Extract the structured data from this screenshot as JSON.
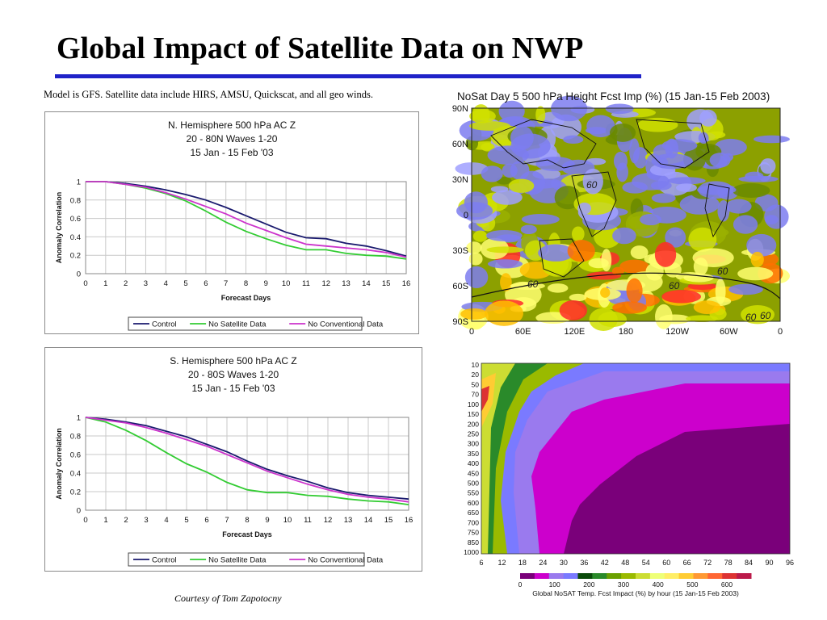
{
  "slide": {
    "title": "Global Impact of Satellite Data on NWP",
    "subtitle": "Model is GFS.  Satellite data include HIRS, AMSU, Quickscat, and all geo winds.",
    "credit": "Courtesy of Tom Zapotocny"
  },
  "chart_data": [
    {
      "type": "line",
      "title": [
        "N. Hemisphere 500 hPa AC Z",
        "20 - 80N Waves 1-20",
        "15 Jan - 15 Feb '03"
      ],
      "xlabel": "Forecast Days",
      "ylabel": "Anomaly Correlation",
      "x": [
        0,
        1,
        2,
        3,
        4,
        5,
        6,
        7,
        8,
        9,
        10,
        11,
        12,
        13,
        14,
        15,
        16
      ],
      "xlim": [
        0,
        16
      ],
      "ylim": [
        0,
        1
      ],
      "yticks": [
        "0",
        "0.2",
        "0.4",
        "0.6",
        "0.8",
        "1"
      ],
      "grid": true,
      "legend_position": "bottom",
      "series": [
        {
          "name": "Control",
          "color": "#1a1a6e",
          "values": [
            1.0,
            1.0,
            0.98,
            0.95,
            0.91,
            0.86,
            0.8,
            0.72,
            0.63,
            0.54,
            0.45,
            0.39,
            0.38,
            0.33,
            0.3,
            0.25,
            0.19
          ]
        },
        {
          "name": "No Satellite Data",
          "color": "#33cc33",
          "values": [
            1.0,
            1.0,
            0.97,
            0.93,
            0.87,
            0.79,
            0.68,
            0.56,
            0.46,
            0.38,
            0.31,
            0.26,
            0.26,
            0.22,
            0.2,
            0.19,
            0.16
          ]
        },
        {
          "name": "No Conventional Data",
          "color": "#cc33cc",
          "values": [
            1.0,
            1.0,
            0.97,
            0.94,
            0.88,
            0.81,
            0.73,
            0.65,
            0.55,
            0.47,
            0.39,
            0.32,
            0.3,
            0.28,
            0.26,
            0.23,
            0.18
          ]
        }
      ]
    },
    {
      "type": "line",
      "title": [
        "S. Hemisphere 500 hPa AC Z",
        "20 - 80S Waves 1-20",
        "15 Jan - 15 Feb '03"
      ],
      "xlabel": "Forecast Days",
      "ylabel": "Anomaly Correlation",
      "x": [
        0,
        1,
        2,
        3,
        4,
        5,
        6,
        7,
        8,
        9,
        10,
        11,
        12,
        13,
        14,
        15,
        16
      ],
      "xlim": [
        0,
        16
      ],
      "ylim": [
        0,
        1
      ],
      "yticks": [
        "0",
        "0.2",
        "0.4",
        "0.6",
        "0.8",
        "1"
      ],
      "grid": true,
      "legend_position": "bottom",
      "series": [
        {
          "name": "Control",
          "color": "#1a1a6e",
          "values": [
            1.0,
            0.98,
            0.95,
            0.91,
            0.85,
            0.79,
            0.71,
            0.63,
            0.53,
            0.44,
            0.37,
            0.31,
            0.24,
            0.19,
            0.16,
            0.14,
            0.12
          ]
        },
        {
          "name": "No Satellite Data",
          "color": "#33cc33",
          "values": [
            1.0,
            0.95,
            0.86,
            0.75,
            0.62,
            0.5,
            0.41,
            0.3,
            0.22,
            0.19,
            0.19,
            0.16,
            0.15,
            0.12,
            0.1,
            0.09,
            0.06
          ]
        },
        {
          "name": "No Conventional Data",
          "color": "#cc33cc",
          "values": [
            1.0,
            0.97,
            0.94,
            0.89,
            0.83,
            0.76,
            0.69,
            0.6,
            0.51,
            0.42,
            0.35,
            0.28,
            0.22,
            0.17,
            0.14,
            0.12,
            0.09
          ]
        }
      ]
    },
    {
      "type": "heatmap",
      "title": "NoSat Day 5 500 hPa Height Fcst Imp (%) (15 Jan-15 Feb 2003)",
      "y_ticks": [
        "90N",
        "60N",
        "30N",
        "0",
        "30S",
        "60S",
        "90S"
      ],
      "x_ticks": [
        "0",
        "60E",
        "120E",
        "180",
        "120W",
        "60W",
        "0"
      ],
      "contour_labels": [
        "60",
        "60",
        "60",
        "60",
        "60",
        "60"
      ],
      "palette": [
        "#7c7cf0",
        "#a0a0ff",
        "#6a8a00",
        "#9ab000",
        "#d0e000",
        "#ffff70",
        "#ffc000",
        "#ff7000",
        "#ff2a2a",
        "#fff0f0"
      ]
    },
    {
      "type": "area",
      "title": "Global NoSAT Temp. Fcst Impact (%) by hour (15 Jan-15 Feb 2003)",
      "x_ticks": [
        "6",
        "12",
        "18",
        "24",
        "30",
        "36",
        "42",
        "48",
        "54",
        "60",
        "66",
        "72",
        "78",
        "84",
        "90",
        "96"
      ],
      "y_ticks": [
        "10",
        "20",
        "50",
        "70",
        "100",
        "150",
        "200",
        "250",
        "300",
        "350",
        "400",
        "450",
        "500",
        "550",
        "600",
        "650",
        "700",
        "750",
        "850",
        "1000"
      ],
      "colorbar_labels": [
        "0",
        "100",
        "200",
        "300",
        "400",
        "500",
        "600"
      ],
      "colorbar_colors": [
        "#7a007a",
        "#cc00cc",
        "#9a7aee",
        "#7a7aff",
        "#0a4a0a",
        "#2a8a2a",
        "#6aa000",
        "#9aba00",
        "#ccdd33",
        "#eeff77",
        "#ffee66",
        "#ffcc33",
        "#ff9933",
        "#ff6633",
        "#dd3333",
        "#bb1a4a"
      ]
    }
  ]
}
